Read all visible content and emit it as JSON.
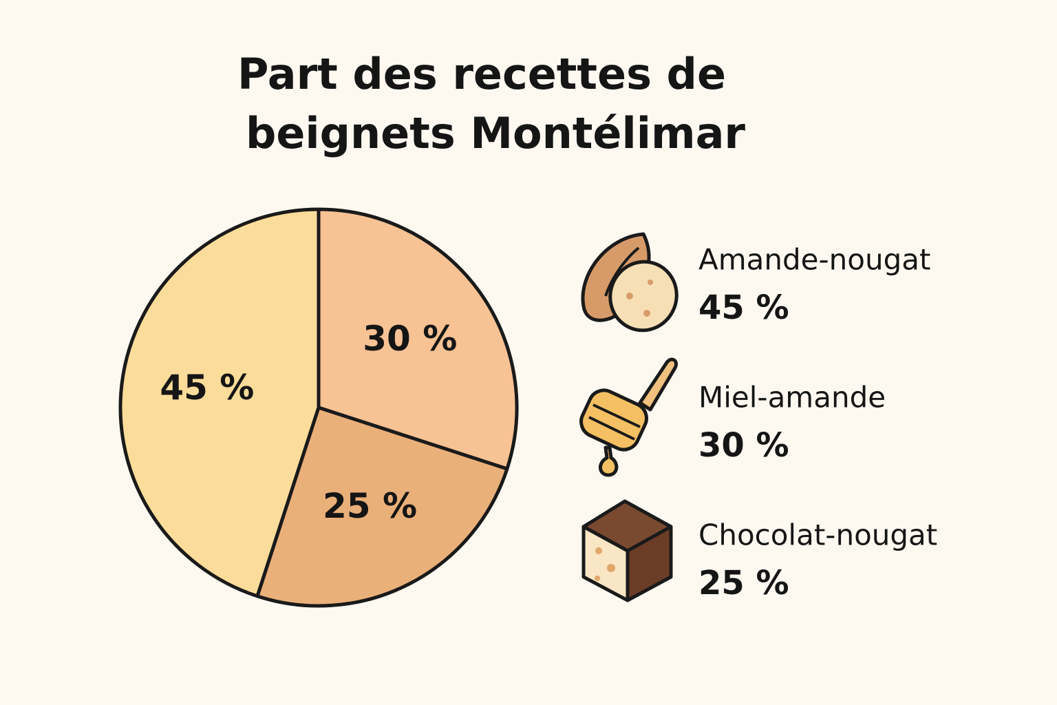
{
  "chart_data": {
    "type": "pie",
    "title": [
      "Part des recettes de",
      "beignets Montélimar"
    ],
    "categories": [
      "Amande-nougat",
      "Miel-amande",
      "Chocolat-nougat"
    ],
    "values": [
      45,
      30,
      25
    ],
    "value_labels": [
      "45 %",
      "30 %",
      "25 %"
    ],
    "colors": [
      "#fcdc9a",
      "#f7c294",
      "#eab07a"
    ]
  }
}
